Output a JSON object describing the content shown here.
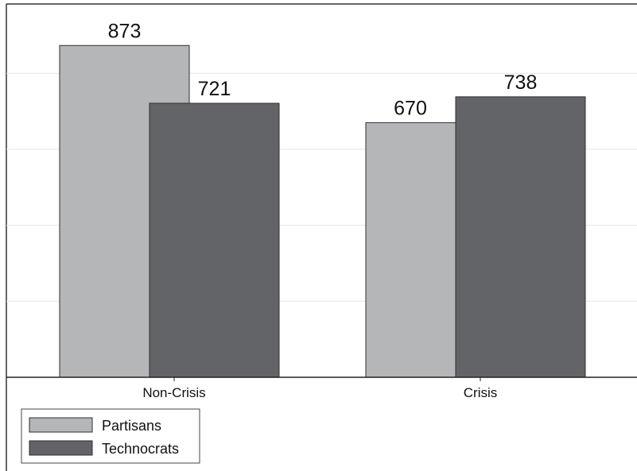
{
  "chart_data": {
    "type": "bar",
    "title": "",
    "xlabel": "",
    "ylabel": "",
    "categories": [
      "Non-Crisis",
      "Crisis"
    ],
    "series": [
      {
        "name": "Partisans",
        "values": [
          873,
          670
        ],
        "color": "#b5b6b8"
      },
      {
        "name": "Technocrats",
        "values": [
          721,
          738
        ],
        "color": "#636467"
      }
    ],
    "ylim": [
      0,
      1000
    ],
    "grid": true,
    "legend_position": "bottom-left",
    "colors": {
      "frame": "#333333",
      "grid": "#e6e6e6",
      "bar_outline": "#2f2f2f"
    }
  }
}
